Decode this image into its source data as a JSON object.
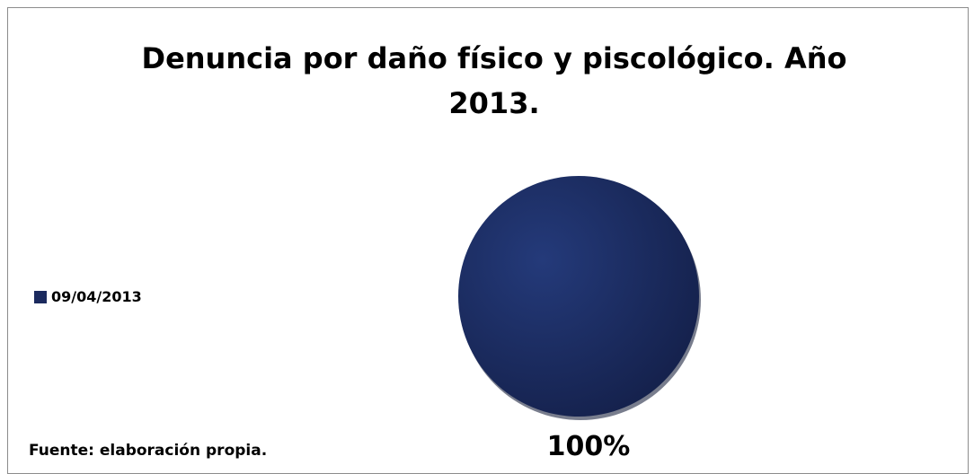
{
  "chart_data": {
    "type": "pie",
    "title": "Denuncia por daño físico y piscológico. Año 2013.",
    "categories": [
      "09/04/2013"
    ],
    "values": [
      100
    ],
    "data_labels": [
      "100%"
    ],
    "legend_position": "left",
    "colors": [
      "#1b2a5e"
    ]
  },
  "source_note": "Fuente: elaboración propia."
}
